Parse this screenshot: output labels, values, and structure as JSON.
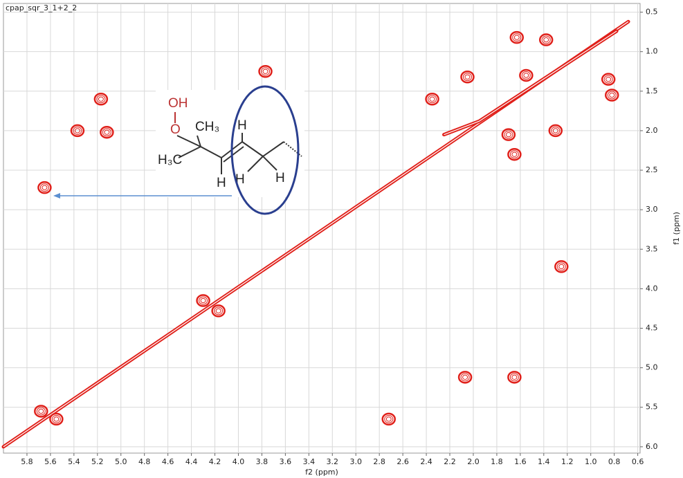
{
  "chart_data": {
    "type": "contour",
    "title": "cpap_sqr_3_1+2_2",
    "x_label": "f2 (ppm)",
    "y_label": "f1 (ppm)",
    "xlim": [
      6.0,
      0.58
    ],
    "ylim": [
      0.39,
      6.08
    ],
    "xticks": [
      5.8,
      5.6,
      5.4,
      5.2,
      {
        "value": 5.0,
        "label": "5.0"
      },
      4.8,
      4.6,
      4.4,
      4.2,
      {
        "value": 4.0,
        "label": "4.0"
      },
      3.8,
      3.6,
      3.4,
      3.2,
      {
        "value": 3.0,
        "label": "3.0"
      },
      2.8,
      2.6,
      2.4,
      2.2,
      {
        "value": 2.0,
        "label": "2.0"
      },
      1.8,
      1.6,
      1.4,
      1.2,
      {
        "value": 1.0,
        "label": "1.0"
      },
      0.8,
      0.6
    ],
    "yticks": [
      0.5,
      {
        "value": 1.0,
        "label": "1.0"
      },
      1.5,
      {
        "value": 2.0,
        "label": "2.0"
      },
      2.5,
      {
        "value": 3.0,
        "label": "3.0"
      },
      3.5,
      {
        "value": 4.0,
        "label": "4.0"
      },
      4.5,
      {
        "value": 5.0,
        "label": "5.0"
      },
      5.5,
      {
        "value": 6.0,
        "label": "6.0"
      }
    ],
    "grid": true,
    "color": "#e0201a",
    "lines": [
      {
        "x": [
          6.0,
          0.68
        ],
        "values": [
          6.0,
          0.62
        ]
      },
      {
        "x": [
          2.25,
          1.95,
          0.78
        ],
        "values": [
          2.05,
          1.88,
          0.74
        ]
      }
    ],
    "peaks": {
      "x": [
        5.12,
        5.37,
        5.65,
        5.17,
        3.77,
        2.35,
        2.05,
        1.63,
        1.38,
        1.65,
        1.3,
        1.7,
        0.85,
        0.82,
        1.55,
        1.25,
        2.07,
        1.65,
        2.72,
        4.3,
        4.17,
        5.68,
        5.55
      ],
      "values": [
        2.02,
        2.0,
        2.72,
        1.6,
        1.25,
        1.6,
        1.32,
        0.82,
        0.85,
        2.3,
        2.0,
        2.05,
        1.35,
        1.55,
        1.3,
        3.72,
        5.12,
        5.12,
        5.65,
        4.15,
        4.28,
        5.55,
        5.65
      ]
    },
    "structure_labels": [
      "OH",
      "O",
      "CH₃",
      "H₃C",
      "H",
      "H",
      "H",
      "H"
    ]
  }
}
